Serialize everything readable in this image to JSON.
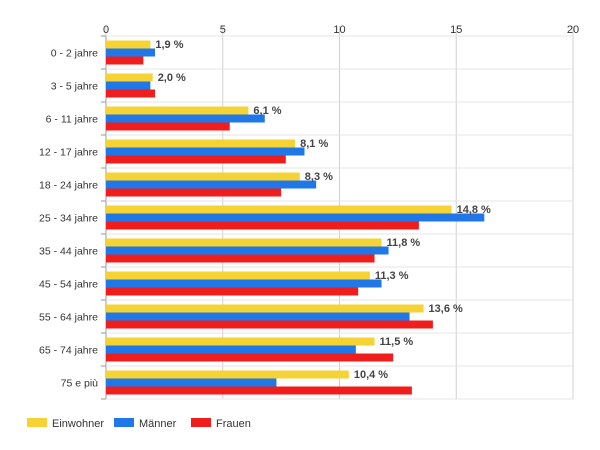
{
  "chart_data": {
    "type": "bar",
    "orientation": "horizontal",
    "categories": [
      "0 - 2 jahre",
      "3 - 5 jahre",
      "6 - 11 jahre",
      "12 - 17 jahre",
      "18 - 24 jahre",
      "25 - 34 jahre",
      "35 - 44 jahre",
      "45 - 54 jahre",
      "55 - 64 jahre",
      "65 - 74 jahre",
      "75 e più"
    ],
    "series": [
      {
        "name": "Einwohner",
        "color": "#f5d335",
        "values": [
          1.9,
          2.0,
          6.1,
          8.1,
          8.3,
          14.8,
          11.8,
          11.3,
          13.6,
          11.5,
          10.4
        ]
      },
      {
        "name": "Männer",
        "color": "#1f77e8",
        "values": [
          2.1,
          1.9,
          6.8,
          8.5,
          9.0,
          16.2,
          12.1,
          11.8,
          13.0,
          10.7,
          7.3
        ]
      },
      {
        "name": "Frauen",
        "color": "#f01d1d",
        "values": [
          1.6,
          2.1,
          5.3,
          7.7,
          7.5,
          13.4,
          11.5,
          10.8,
          14.0,
          12.3,
          13.1
        ]
      }
    ],
    "data_labels": [
      "1,9 %",
      "2,0 %",
      "6,1 %",
      "8,1 %",
      "8,3 %",
      "14,8 %",
      "11,8 %",
      "11,3 %",
      "13,6 %",
      "11,5 %",
      "10,4 %"
    ],
    "xlim": [
      0,
      20
    ],
    "x_ticks": [
      "0",
      "5",
      "10",
      "15",
      "20"
    ],
    "grid": true,
    "legend_position": "bottom-left",
    "title": "",
    "xlabel": "",
    "ylabel": ""
  }
}
